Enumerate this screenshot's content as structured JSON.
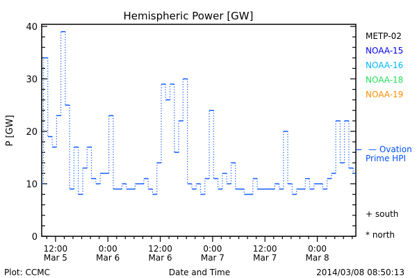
{
  "chart_data": {
    "type": "line",
    "title": "Hemispheric Power [GW]",
    "ylabel": "P [GW]",
    "xlabel": "Date and Time",
    "ylim": [
      0,
      40
    ],
    "yticks": [
      0,
      10,
      20,
      30,
      40
    ],
    "xlim_hours": [
      0,
      72
    ],
    "x_start": "Mar 5 08:50",
    "xticks": [
      {
        "hour": 3.17,
        "line1": "12:00",
        "line2": "Mar 5"
      },
      {
        "hour": 15.17,
        "line1": "0:00",
        "line2": "Mar 6"
      },
      {
        "hour": 27.17,
        "line1": "12:00",
        "line2": "Mar 6"
      },
      {
        "hour": 39.17,
        "line1": "0:00",
        "line2": "Mar 7"
      },
      {
        "hour": 51.17,
        "line1": "12:00",
        "line2": "Mar 7"
      },
      {
        "hour": 63.17,
        "line1": "0:00",
        "line2": "Mar 8"
      }
    ],
    "series": [
      {
        "name": "NOAA-15",
        "color": "#0050ff",
        "style": "step",
        "step_hours": 1,
        "first_step_hours": 0.4,
        "values": [
          10,
          34,
          19,
          17,
          23,
          39,
          25,
          9,
          17,
          8,
          13,
          17,
          11,
          10,
          12,
          12,
          23,
          9,
          9,
          10,
          9,
          9,
          10,
          10,
          11,
          9,
          8,
          14,
          29,
          26,
          29,
          16,
          22,
          30,
          10,
          9,
          10,
          8,
          11,
          24,
          11,
          9,
          12,
          10,
          14,
          9,
          9,
          8,
          8,
          11,
          9,
          9,
          9,
          9,
          10,
          9,
          20,
          10,
          8,
          9,
          9,
          11,
          9,
          10,
          10,
          9,
          11,
          12,
          22,
          14,
          22,
          13,
          12
        ]
      }
    ],
    "ovation_marker": {
      "value": 16.5,
      "color": "#0050ff"
    },
    "legend": [
      {
        "label": "METP-02",
        "color": "#000000"
      },
      {
        "label": "NOAA-15",
        "color": "#0000ee"
      },
      {
        "label": "NOAA-16",
        "color": "#00b4ff"
      },
      {
        "label": "NOAA-18",
        "color": "#22e05a"
      },
      {
        "label": "NOAA-19",
        "color": "#ff8c00"
      }
    ],
    "legend_placement": "right",
    "ovation_label_1": "— Ovation",
    "ovation_label_2": "Prime HPI",
    "south_label": "+ south",
    "north_label": "* north"
  },
  "footer": {
    "left": "Plot: CCMC",
    "right": "2014/03/08 08:50:13"
  }
}
